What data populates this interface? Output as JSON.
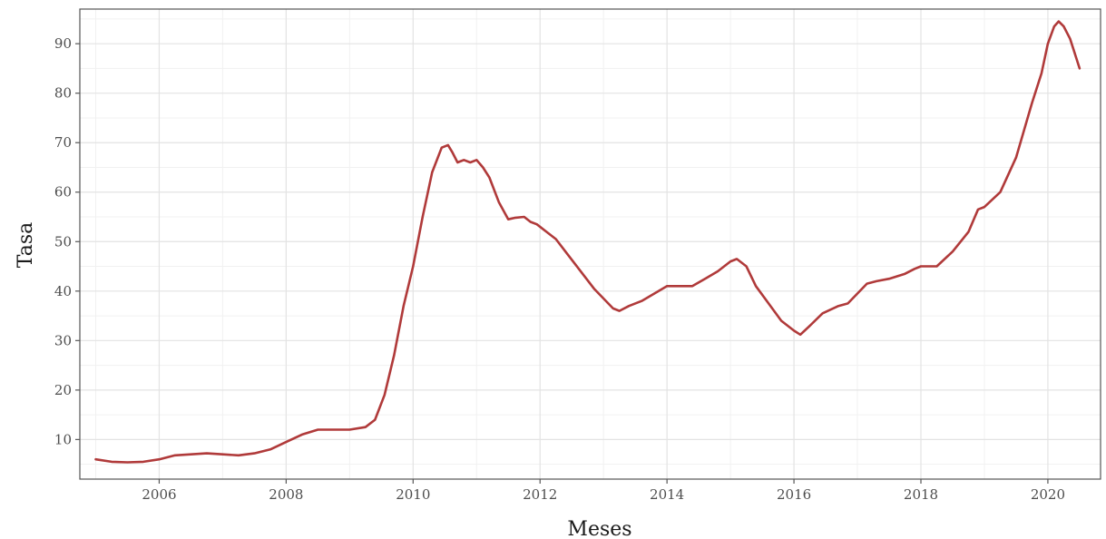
{
  "chart_data": {
    "type": "line",
    "title": "",
    "xlabel": "Meses",
    "ylabel": "Tasa",
    "xlim": [
      2004.75,
      2020.83
    ],
    "ylim": [
      2,
      97
    ],
    "x_ticks": [
      2006,
      2008,
      2010,
      2012,
      2014,
      2016,
      2018,
      2020
    ],
    "x_tick_labels": [
      "2006",
      "2008",
      "2010",
      "2012",
      "2014",
      "2016",
      "2018",
      "2020"
    ],
    "y_ticks": [
      10,
      20,
      30,
      40,
      50,
      60,
      70,
      80,
      90
    ],
    "y_tick_labels": [
      "10",
      "20",
      "30",
      "40",
      "50",
      "60",
      "70",
      "80",
      "90"
    ],
    "grid": true,
    "legend": "none",
    "series": [
      {
        "color": "#b03a3a",
        "x": [
          2005.0,
          2005.25,
          2005.5,
          2005.75,
          2006.0,
          2006.25,
          2006.5,
          2006.75,
          2007.0,
          2007.25,
          2007.5,
          2007.75,
          2008.0,
          2008.25,
          2008.5,
          2008.75,
          2009.0,
          2009.25,
          2009.4,
          2009.55,
          2009.7,
          2009.85,
          2010.0,
          2010.15,
          2010.3,
          2010.45,
          2010.55,
          2010.62,
          2010.7,
          2010.8,
          2010.9,
          2011.0,
          2011.1,
          2011.2,
          2011.35,
          2011.5,
          2011.6,
          2011.75,
          2011.85,
          2011.95,
          2012.1,
          2012.25,
          2012.4,
          2012.55,
          2012.7,
          2012.85,
          2013.0,
          2013.15,
          2013.25,
          2013.4,
          2013.6,
          2013.8,
          2014.0,
          2014.2,
          2014.4,
          2014.6,
          2014.8,
          2015.0,
          2015.1,
          2015.25,
          2015.4,
          2015.6,
          2015.8,
          2016.0,
          2016.1,
          2016.25,
          2016.45,
          2016.7,
          2016.85,
          2017.0,
          2017.15,
          2017.3,
          2017.5,
          2017.75,
          2017.9,
          2018.0,
          2018.25,
          2018.5,
          2018.75,
          2018.9,
          2019.0,
          2019.25,
          2019.5,
          2019.75,
          2019.9,
          2020.0,
          2020.1,
          2020.17,
          2020.25,
          2020.35,
          2020.5
        ],
        "y": [
          6,
          5.5,
          5.4,
          5.5,
          6,
          6.8,
          7,
          7.2,
          7,
          6.8,
          7.2,
          8,
          9.5,
          11,
          12,
          12,
          12,
          12.5,
          14,
          19,
          27,
          37,
          45,
          55,
          64,
          69,
          69.5,
          68,
          66,
          66.5,
          66,
          66.5,
          65,
          63,
          58,
          54.5,
          54.8,
          55,
          54,
          53.5,
          52,
          50.5,
          48,
          45.5,
          43,
          40.5,
          38.5,
          36.5,
          36,
          37,
          38,
          39.5,
          41,
          41,
          41,
          42.5,
          44,
          46,
          46.5,
          45,
          41,
          37.5,
          34,
          32,
          31.2,
          33,
          35.5,
          37,
          37.5,
          39.5,
          41.5,
          42,
          42.5,
          43.5,
          44.5,
          45,
          45,
          48,
          52,
          56.5,
          57,
          60,
          67,
          78,
          84,
          90,
          93.5,
          94.5,
          93.5,
          91,
          85
        ]
      }
    ]
  }
}
